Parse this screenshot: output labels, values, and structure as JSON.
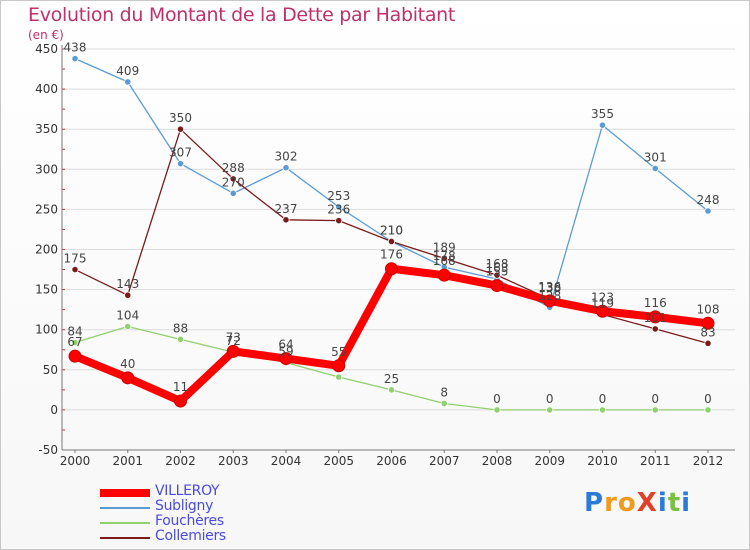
{
  "header": {
    "title": "Evolution du Montant de la Dette par Habitant",
    "subtitle": "(en €)"
  },
  "logo": {
    "text": "ProXiti",
    "letters": [
      {
        "ch": "P",
        "color": "#2a7bd8"
      },
      {
        "ch": "r",
        "color": "#f29a1e"
      },
      {
        "ch": "o",
        "color": "#f29a1e"
      },
      {
        "ch": "X",
        "color": "#e0402a"
      },
      {
        "ch": "i",
        "color": "#2a7bd8"
      },
      {
        "ch": "t",
        "color": "#7bc043"
      },
      {
        "ch": "i",
        "color": "#2a7bd8"
      }
    ]
  },
  "chart_data": {
    "type": "line",
    "title": "Evolution du Montant de la Dette par Habitant",
    "subtitle": "(en €)",
    "xlabel": "",
    "ylabel": "",
    "x": [
      "2000",
      "2001",
      "2002",
      "2003",
      "2004",
      "2005",
      "2006",
      "2007",
      "2008",
      "2009",
      "2010",
      "2011",
      "2012"
    ],
    "ylim": [
      -50,
      450
    ],
    "yticks": [
      -50,
      0,
      50,
      100,
      150,
      200,
      250,
      300,
      350,
      400,
      450
    ],
    "grid": "horizontal",
    "legend_position": "bottom-left",
    "series": [
      {
        "name": "Subligny",
        "color": "#5b9bd5",
        "width": 1.3,
        "marker": 3.2,
        "values": [
          438,
          409,
          307,
          270,
          302,
          253,
          210,
          178,
          163,
          128,
          355,
          301,
          248
        ],
        "labels": [
          "438",
          "409",
          "307",
          "270",
          "302",
          "253",
          "210",
          "178",
          "163",
          "128",
          "355",
          "301",
          "248"
        ]
      },
      {
        "name": "Fouchères",
        "color": "#90d070",
        "width": 1.3,
        "marker": 3.2,
        "values": [
          84,
          104,
          88,
          72,
          59,
          41,
          25,
          8,
          0,
          0,
          0,
          0,
          0
        ],
        "labels": [
          "84",
          "104",
          "88",
          "72",
          "59",
          "",
          "25",
          "8",
          "0",
          "0",
          "0",
          "0",
          "0"
        ]
      },
      {
        "name": "Collemiers",
        "color": "#7a1a1a",
        "width": 1.3,
        "marker": 3.2,
        "values": [
          175,
          143,
          350,
          288,
          237,
          236,
          210,
          189,
          168,
          138,
          119,
          101,
          83
        ],
        "labels": [
          "175",
          "143",
          "350",
          "288",
          "237",
          "236",
          "210",
          "189",
          "168",
          "138",
          "119",
          "101",
          "83"
        ]
      },
      {
        "name": "VILLEROY",
        "color": "#ff0000",
        "width": 8,
        "marker": 6,
        "values": [
          67,
          40,
          11,
          73,
          64,
          55,
          176,
          168,
          155,
          136,
          123,
          116,
          108
        ],
        "labels": [
          "67",
          "40",
          "11",
          "73",
          "64",
          "55",
          "176",
          "168",
          "155",
          "136",
          "123",
          "116",
          "108"
        ]
      }
    ],
    "legend": [
      {
        "name": "VILLEROY",
        "color": "#ff0000",
        "width": 8
      },
      {
        "name": "Subligny",
        "color": "#5b9bd5",
        "width": 2
      },
      {
        "name": "Fouchères",
        "color": "#90d070",
        "width": 2
      },
      {
        "name": "Collemiers",
        "color": "#7a1a1a",
        "width": 2
      }
    ]
  }
}
